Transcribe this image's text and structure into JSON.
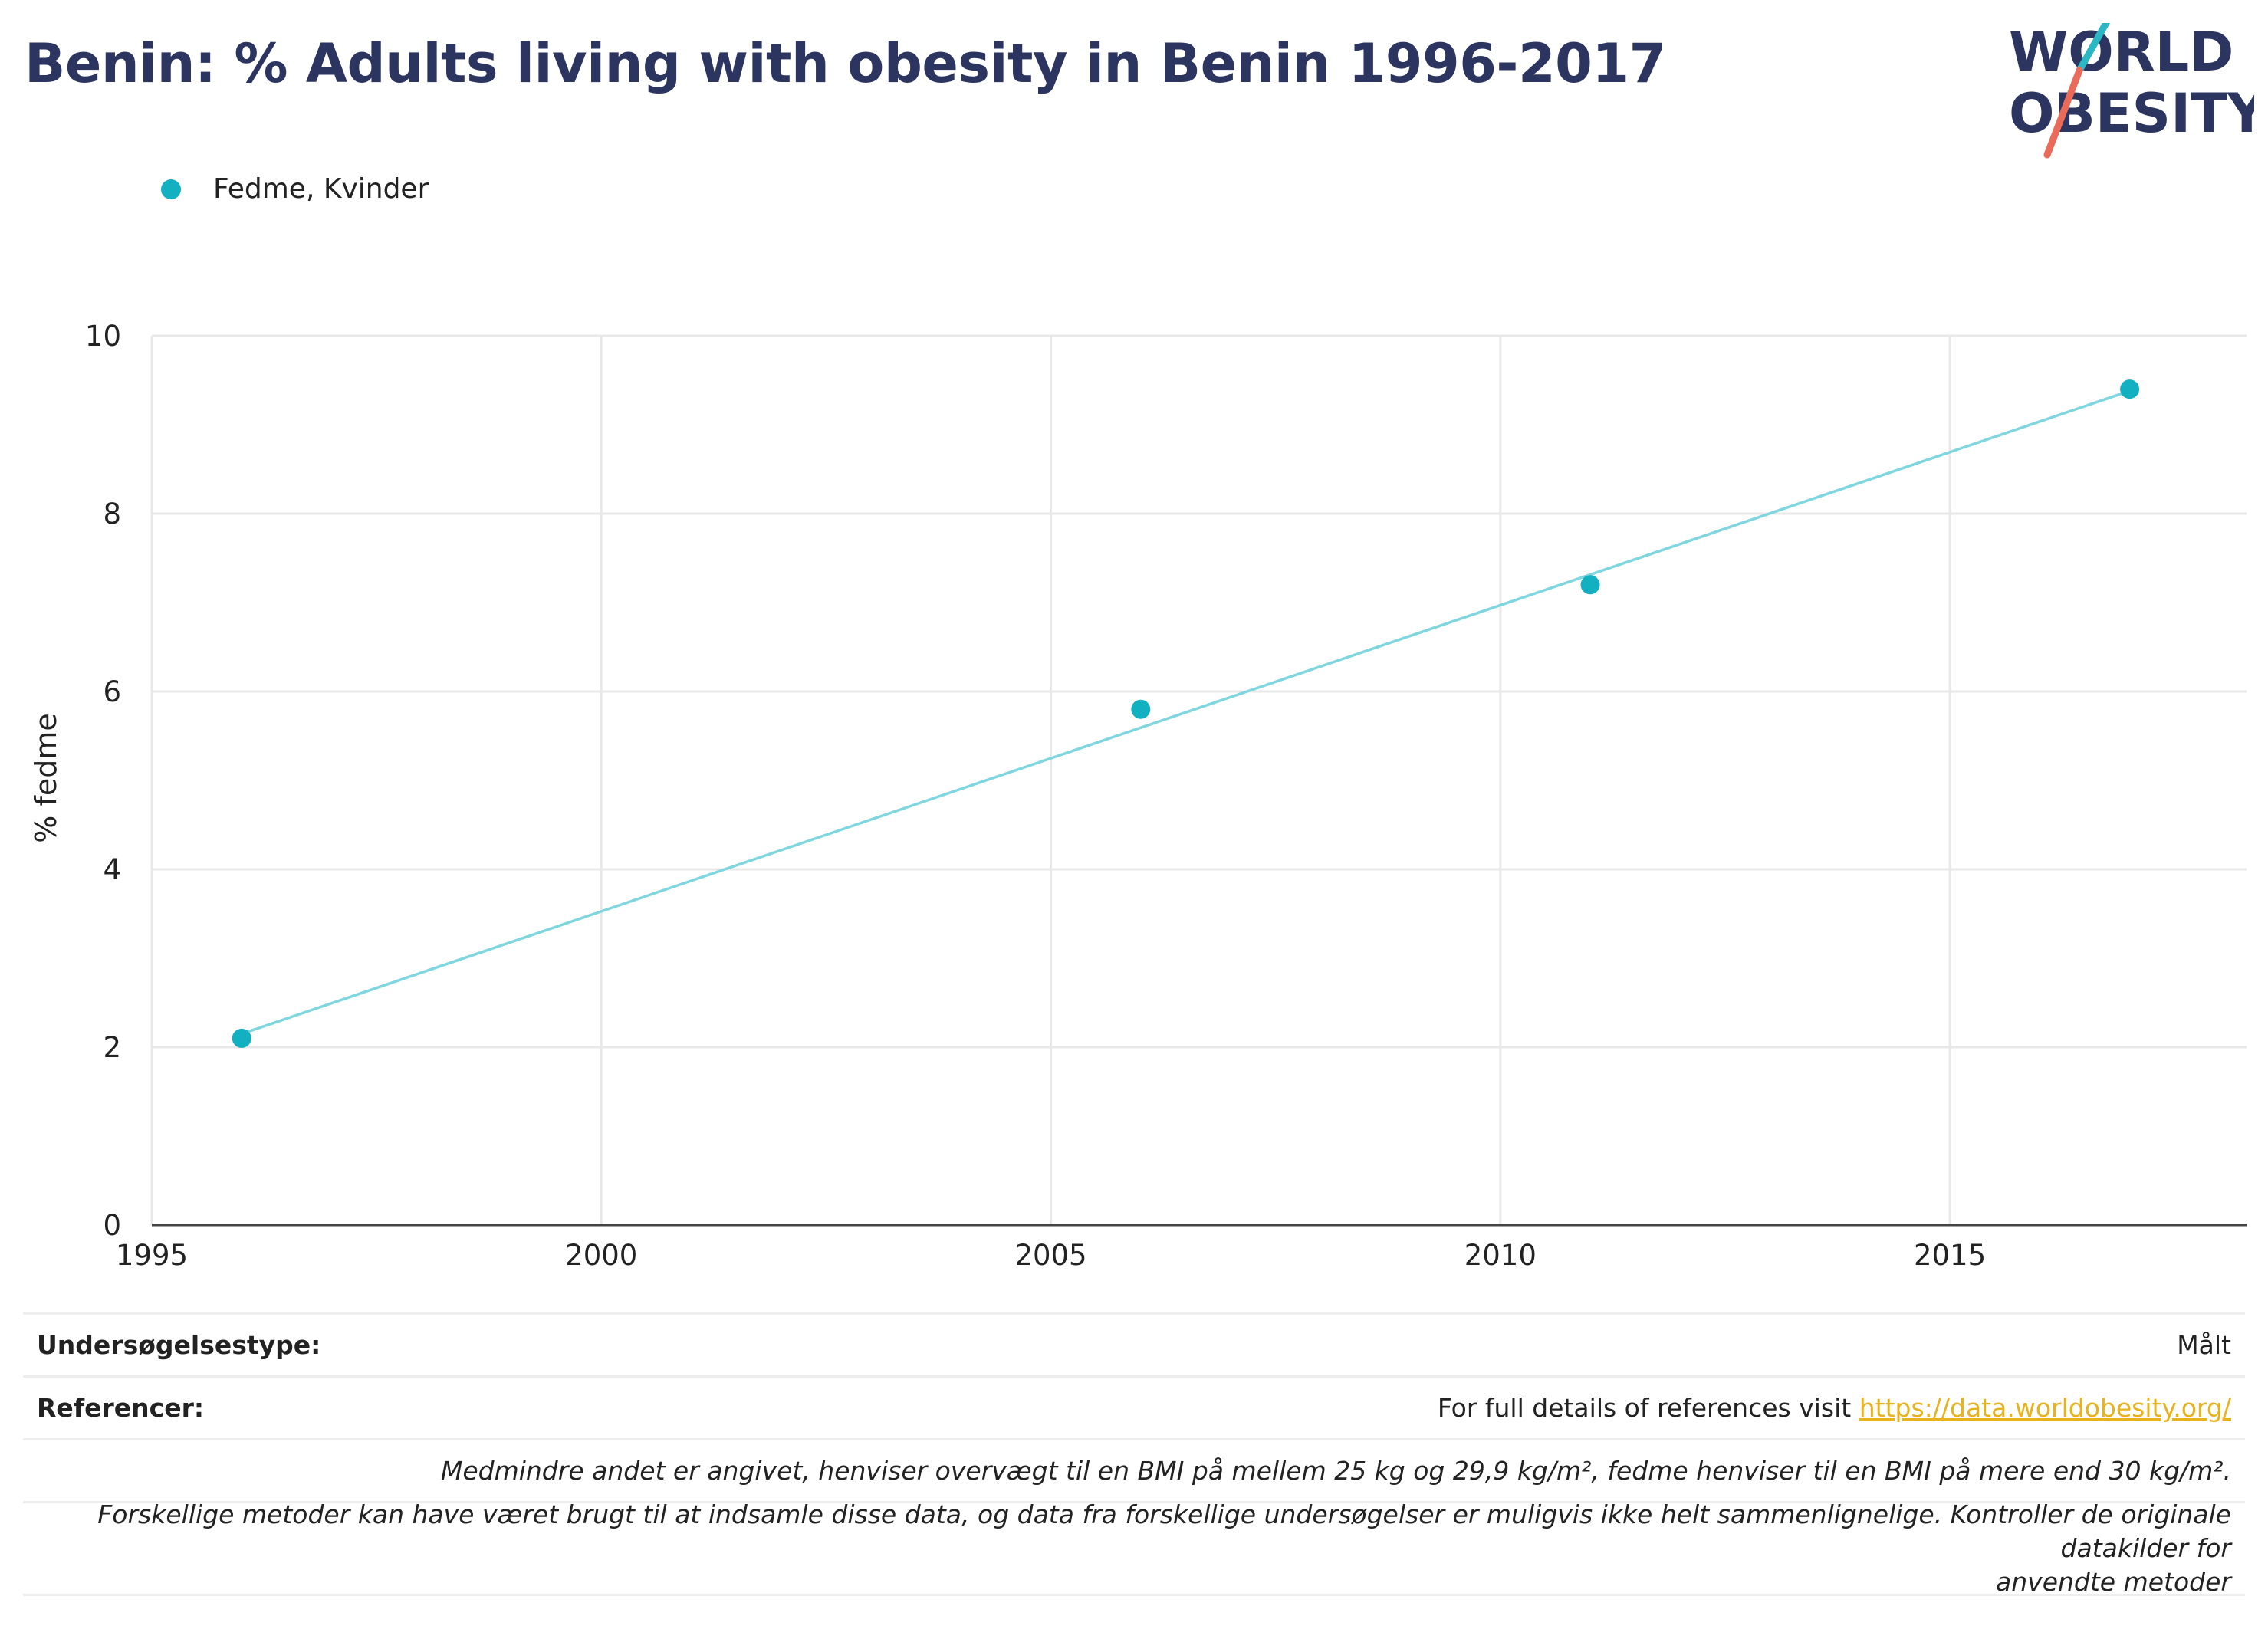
{
  "title": "Benin: % Adults living with obesity in Benin 1996-2017",
  "logo": {
    "line1": "WORLD",
    "line2": "OBESITY"
  },
  "colors": {
    "series": "#12b0c0",
    "trend": "#7fd6de",
    "title": "#2b3560",
    "link": "#e8b21c"
  },
  "chart_data": {
    "type": "scatter",
    "title": "Benin: % Adults living with obesity in Benin 1996-2017",
    "xlabel": "",
    "ylabel": "% fedme",
    "xlim": [
      1995,
      2018.3
    ],
    "ylim": [
      0,
      10
    ],
    "xticks": [
      1995,
      2000,
      2005,
      2010,
      2015
    ],
    "yticks": [
      0,
      2,
      4,
      6,
      8,
      10
    ],
    "grid": true,
    "legend_position": "top-left",
    "series": [
      {
        "name": "Fedme, Kvinder",
        "x": [
          1996,
          2006,
          2011,
          2017
        ],
        "y": [
          2.1,
          5.8,
          7.2,
          9.4
        ],
        "trendline": {
          "x": [
            1996,
            2017
          ],
          "y": [
            2.15,
            9.38
          ]
        }
      }
    ]
  },
  "footer": {
    "survey_label": "Undersøgelsestype:",
    "survey_value": "Målt",
    "references_label": "Referencer:",
    "references_text": "For full details of references visit ",
    "references_link": "https://data.worldobesity.org/",
    "note1": "Medmindre andet er angivet, henviser overvægt til en BMI på mellem 25 kg og 29,9 kg/m², fedme henviser til en BMI på mere end 30 kg/m².",
    "note2_line1": "Forskellige metoder kan have været brugt til at indsamle disse data, og data fra forskellige undersøgelser er muligvis ikke helt sammenlignelige. Kontroller de originale datakilder for",
    "note2_line2": "anvendte metoder"
  }
}
